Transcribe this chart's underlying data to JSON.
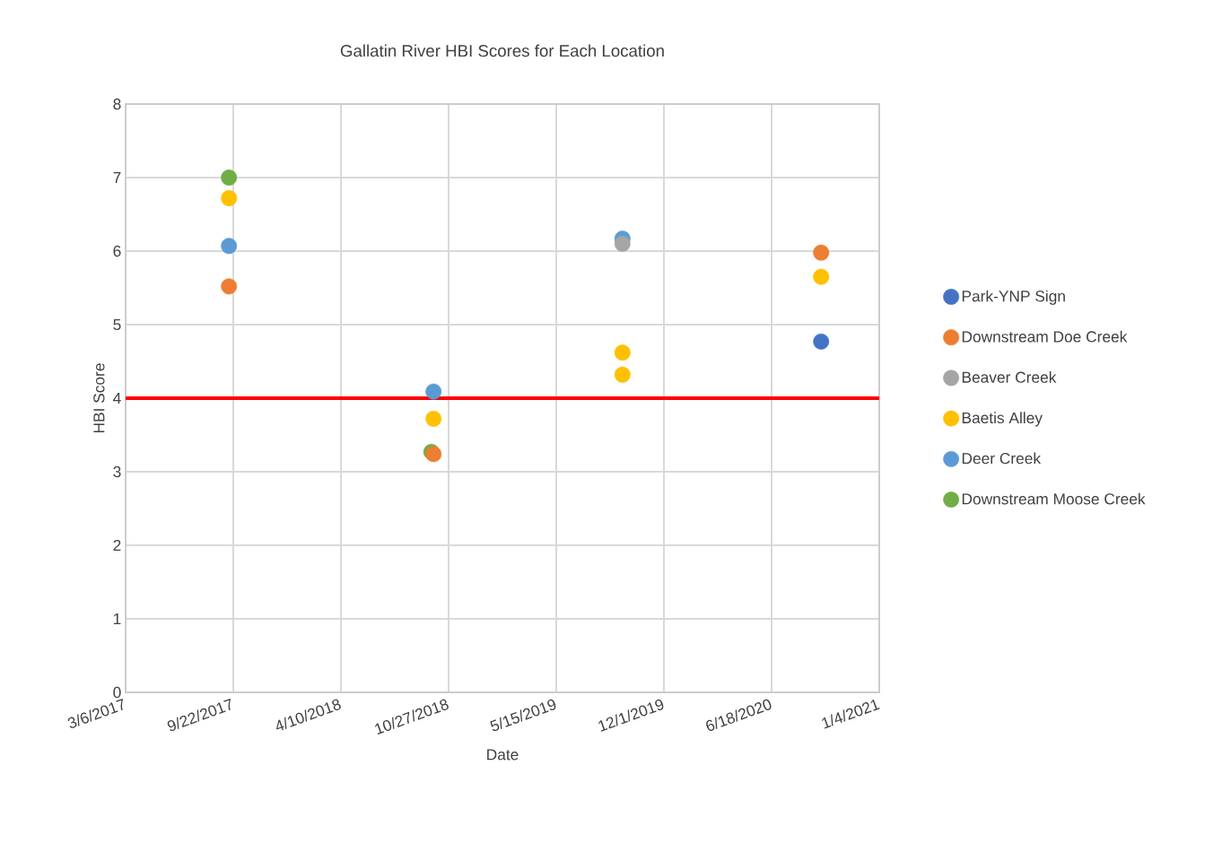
{
  "chart_data": {
    "type": "scatter",
    "title": "Gallatin River HBI Scores for Each Location",
    "xlabel": "Date",
    "ylabel": "HBI Score",
    "xlim": [
      "2017-03-06",
      "2021-01-04"
    ],
    "xticks": [
      {
        "value": "2017-03-06",
        "label": "3/6/2017"
      },
      {
        "value": "2017-09-22",
        "label": "9/22/2017"
      },
      {
        "value": "2018-04-10",
        "label": "4/10/2018"
      },
      {
        "value": "2018-10-27",
        "label": "10/27/2018"
      },
      {
        "value": "2019-05-15",
        "label": "5/15/2019"
      },
      {
        "value": "2019-12-01",
        "label": "12/1/2019"
      },
      {
        "value": "2020-06-18",
        "label": "6/18/2020"
      },
      {
        "value": "2021-01-04",
        "label": "1/4/2021"
      }
    ],
    "ylim": [
      0,
      8
    ],
    "yticks": [
      0,
      1,
      2,
      3,
      4,
      5,
      6,
      7,
      8
    ],
    "grid": true,
    "legend": "right",
    "marker": "circle",
    "ref_lines": [
      {
        "axis": "y",
        "value": 4,
        "color": "#ff0000"
      }
    ],
    "series": [
      {
        "name": "Park-YNP Sign",
        "color": "#4472c4",
        "x": [
          "2020-09-18"
        ],
        "values": [
          4.77
        ]
      },
      {
        "name": "Downstream Doe Creek",
        "color": "#ed7d31",
        "x": [
          "2017-09-14",
          "2018-09-29",
          "2020-09-18"
        ],
        "values": [
          5.52,
          3.24,
          5.98
        ]
      },
      {
        "name": "Beaver Creek",
        "color": "#a5a5a5",
        "x": [
          "2019-09-15"
        ],
        "values": [
          6.1
        ]
      },
      {
        "name": "Baetis Alley",
        "color": "#ffc000",
        "x": [
          "2017-09-14",
          "2018-09-29",
          "2019-09-15",
          "2019-09-15",
          "2020-09-18"
        ],
        "values": [
          6.72,
          3.72,
          4.62,
          4.32,
          5.65
        ]
      },
      {
        "name": "Deer Creek",
        "color": "#5b9bd5",
        "x": [
          "2017-09-14",
          "2018-09-29",
          "2019-09-15"
        ],
        "values": [
          6.07,
          4.09,
          6.17
        ]
      },
      {
        "name": "Downstream Moose Creek",
        "color": "#70ad47",
        "x": [
          "2017-09-14",
          "2018-09-25"
        ],
        "values": [
          7.0,
          3.27
        ]
      }
    ]
  }
}
